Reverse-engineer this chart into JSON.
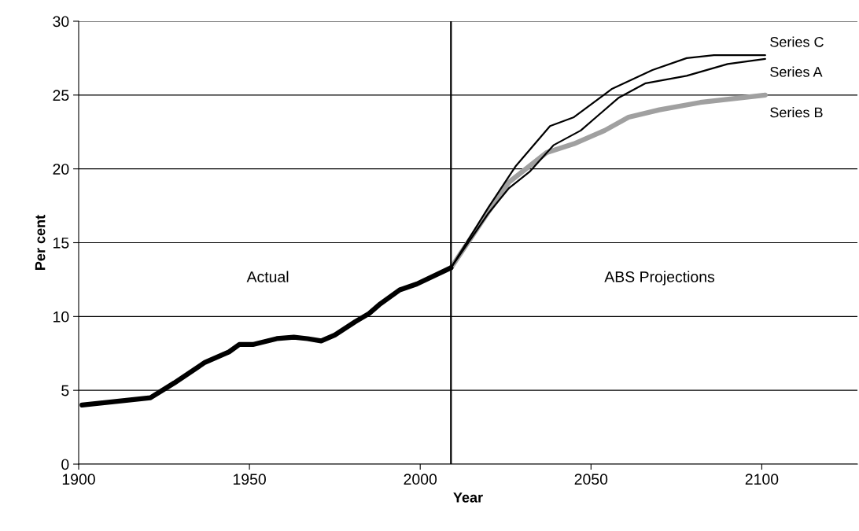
{
  "chart_data": {
    "type": "line",
    "xlabel": "Year",
    "ylabel": "Per cent",
    "xlim": [
      1900,
      2128
    ],
    "xticks": [
      1900,
      1950,
      2000,
      2050,
      2100
    ],
    "ylim": [
      0,
      30
    ],
    "yticks": [
      0,
      5,
      10,
      15,
      20,
      25,
      30
    ],
    "grid": "y",
    "legend": false,
    "marker": "none",
    "series": [
      {
        "color": "#000000",
        "x": [
          1901,
          1921,
          1928,
          1937,
          1944,
          1947,
          1951,
          1958,
          1963,
          1967,
          1971,
          1975,
          1981,
          1985,
          1988,
          1994,
          1999,
          2009
        ],
        "values": [
          4.0,
          4.5,
          5.5,
          6.9,
          7.6,
          8.1,
          8.1,
          8.5,
          8.6,
          8.5,
          8.35,
          8.75,
          9.65,
          10.2,
          10.8,
          11.8,
          12.2,
          13.3
        ]
      },
      {
        "name": "Series C",
        "color": "#000000",
        "x": [
          2009,
          2020,
          2028,
          2038,
          2045,
          2056,
          2068,
          2078,
          2086,
          2101
        ],
        "values": [
          13.3,
          17.4,
          20.2,
          22.9,
          23.5,
          25.4,
          26.7,
          27.5,
          27.7,
          27.7
        ]
      },
      {
        "name": "Series A",
        "color": "#000000",
        "x": [
          2009,
          2020,
          2026,
          2032,
          2039,
          2047,
          2058,
          2066,
          2078,
          2090,
          2101
        ],
        "values": [
          13.3,
          17.0,
          18.7,
          19.8,
          21.6,
          22.6,
          24.8,
          25.8,
          26.3,
          27.1,
          27.45
        ]
      },
      {
        "name": "Series B",
        "color": "#a0a0a0",
        "x": [
          2009,
          2020,
          2026,
          2037,
          2045,
          2054,
          2061,
          2070,
          2082,
          2101
        ],
        "values": [
          13.3,
          17.1,
          19.1,
          21.1,
          21.7,
          22.6,
          23.5,
          24.0,
          24.5,
          25.0
        ]
      }
    ],
    "ref_lines": [
      {
        "axis": "x",
        "value": 2009,
        "color": "#000000"
      }
    ],
    "annotations": [
      "Actual",
      "ABS Projections"
    ]
  }
}
